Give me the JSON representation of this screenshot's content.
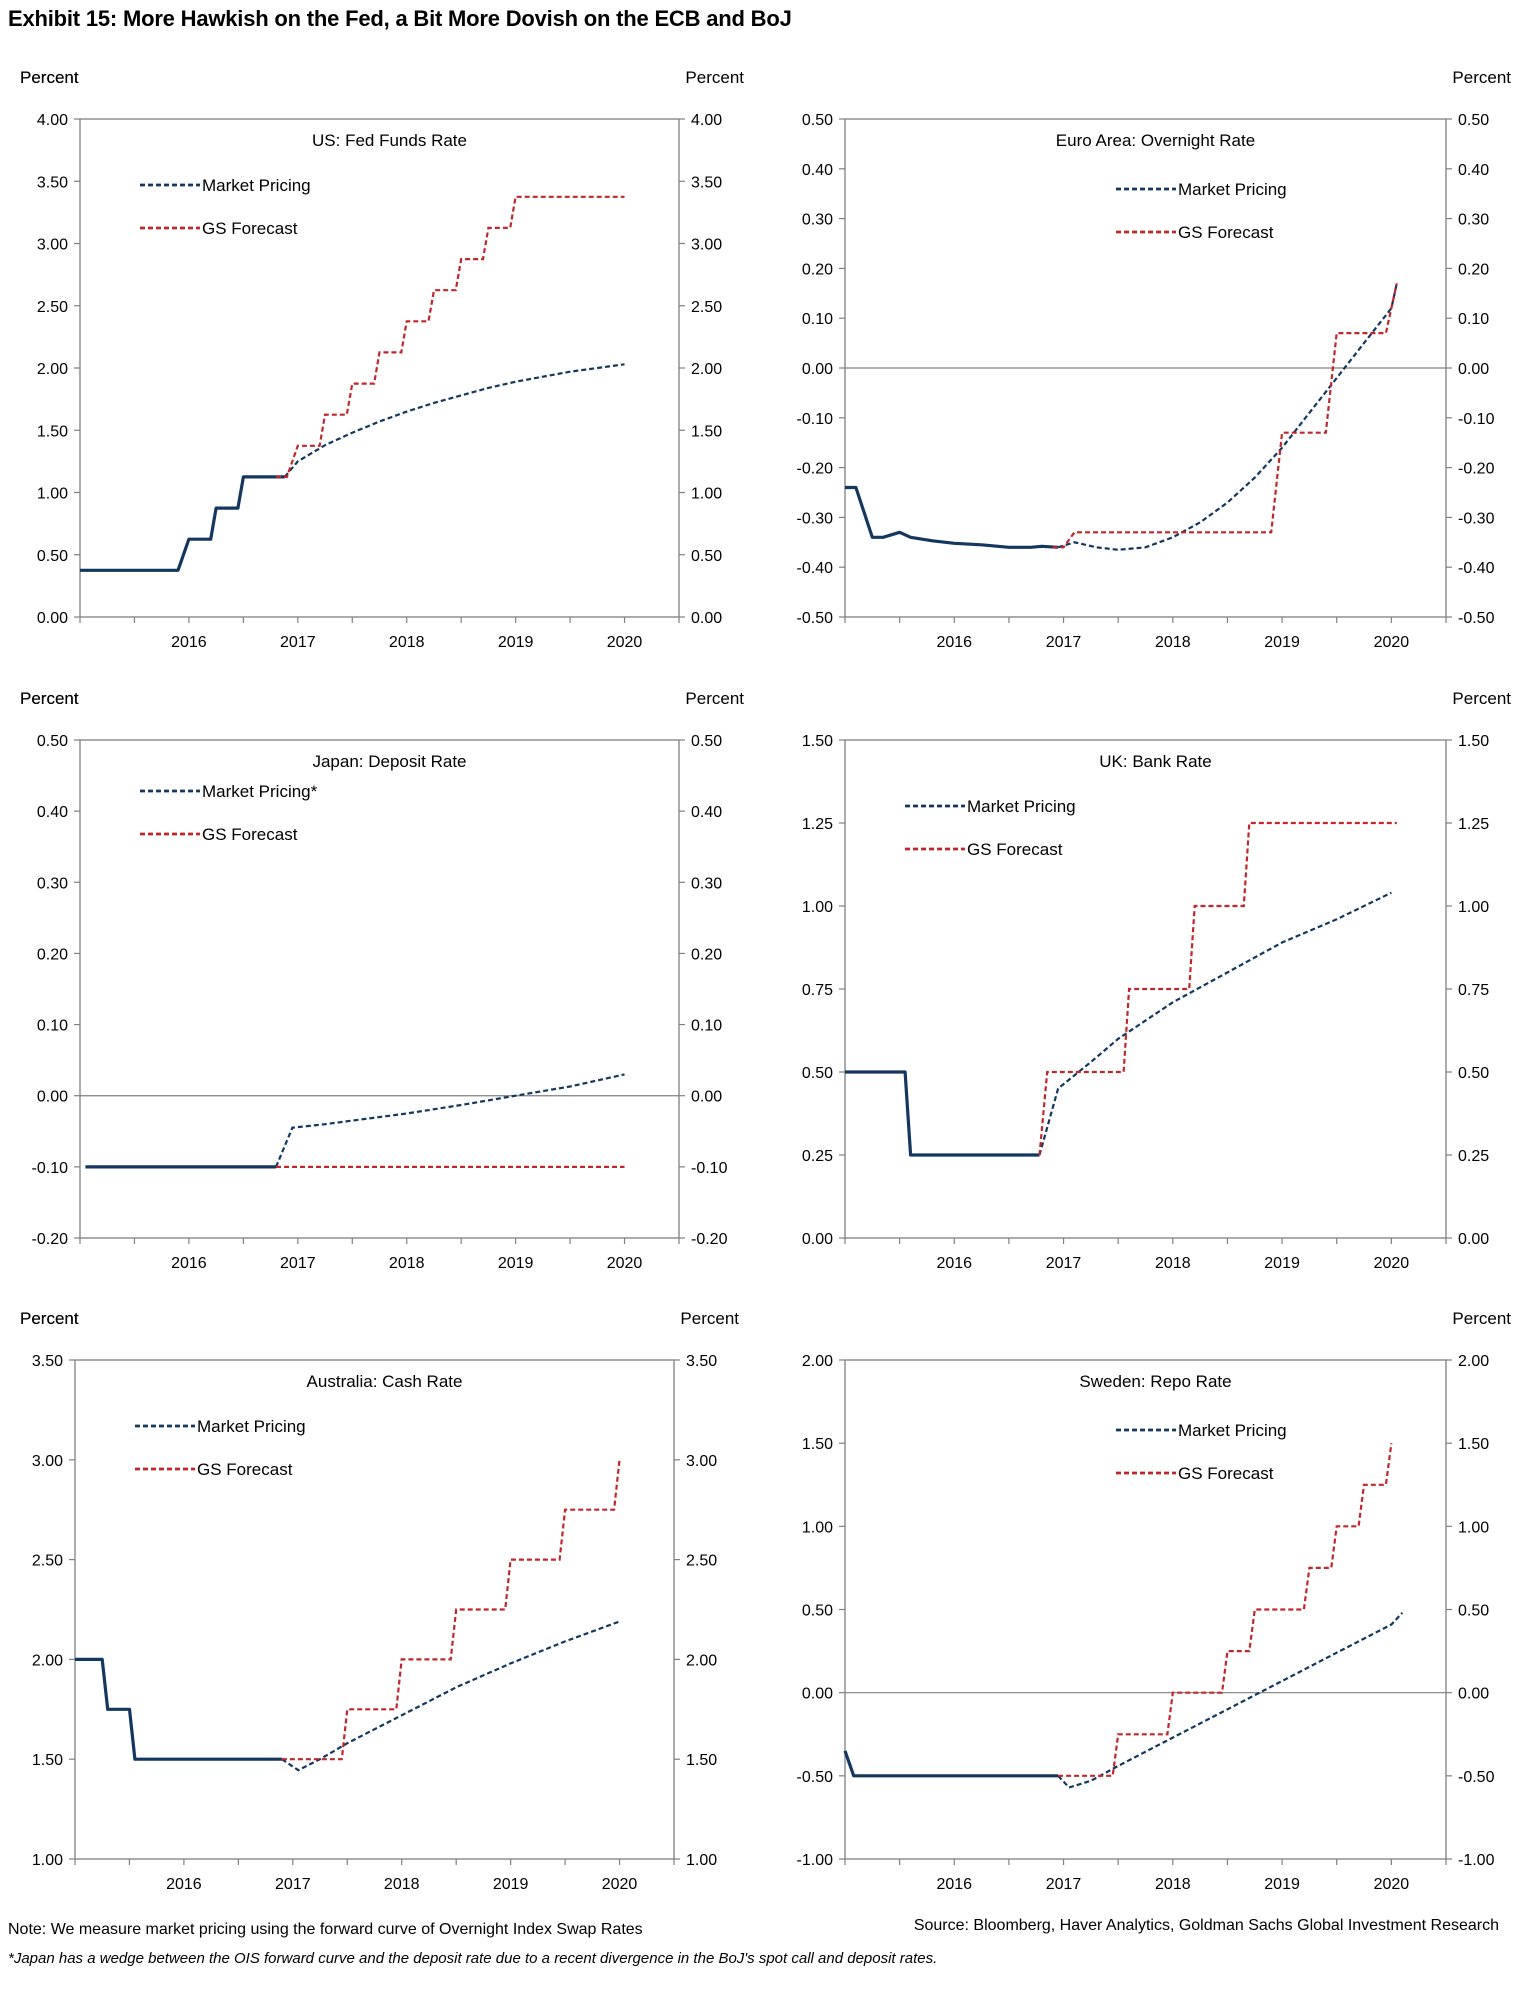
{
  "title": "Exhibit 15: More Hawkish on the Fed, a Bit More Dovish on the ECB and BoJ",
  "note": "Note: We measure market pricing using the forward curve of Overnight Index Swap Rates",
  "source": "Source: Bloomberg, Haver Analytics, Goldman Sachs Global Investment Research",
  "footnote": "*Japan has a wedge between the OIS forward curve and the deposit rate due to a recent divergence in the BoJ's spot call and deposit rates.",
  "colors": {
    "market": "#14375e",
    "forecast": "#c0272d",
    "axis": "#808080"
  },
  "chart_data": [
    {
      "type": "line",
      "title": "US: Fed Funds Rate",
      "ylabel_left": "Percent",
      "ylabel_right": "Percent",
      "ylim": [
        0,
        4
      ],
      "yticks": [
        "0.00",
        "0.50",
        "1.00",
        "1.50",
        "2.00",
        "2.50",
        "3.00",
        "3.50",
        "4.00"
      ],
      "xlim": [
        2015.5,
        2021.0
      ],
      "xticks": [
        "2016",
        "2017",
        "2018",
        "2019",
        "2020"
      ],
      "zero_line": false,
      "legend": [
        "Market Pricing",
        "GS Forecast"
      ],
      "legend_position": "top-left",
      "history": [
        [
          2015.5,
          0.375
        ],
        [
          2016.4,
          0.375
        ],
        [
          2016.5,
          0.625
        ],
        [
          2016.7,
          0.625
        ],
        [
          2016.75,
          0.875
        ],
        [
          2016.95,
          0.875
        ],
        [
          2017.0,
          1.125
        ],
        [
          2017.38,
          1.125
        ]
      ],
      "series": [
        {
          "name": "Market Pricing",
          "points": [
            [
              2017.38,
              1.125
            ],
            [
              2017.5,
              1.25
            ],
            [
              2017.75,
              1.38
            ],
            [
              2018.0,
              1.48
            ],
            [
              2018.25,
              1.57
            ],
            [
              2018.5,
              1.65
            ],
            [
              2018.75,
              1.72
            ],
            [
              2019.0,
              1.78
            ],
            [
              2019.25,
              1.84
            ],
            [
              2019.5,
              1.89
            ],
            [
              2019.75,
              1.93
            ],
            [
              2020.0,
              1.97
            ],
            [
              2020.25,
              2.0
            ],
            [
              2020.5,
              2.03
            ]
          ]
        },
        {
          "name": "GS Forecast",
          "points": [
            [
              2017.3,
              1.125
            ],
            [
              2017.4,
              1.125
            ],
            [
              2017.5,
              1.375
            ],
            [
              2017.7,
              1.375
            ],
            [
              2017.75,
              1.625
            ],
            [
              2017.95,
              1.625
            ],
            [
              2018.0,
              1.875
            ],
            [
              2018.2,
              1.875
            ],
            [
              2018.25,
              2.125
            ],
            [
              2018.45,
              2.125
            ],
            [
              2018.5,
              2.375
            ],
            [
              2018.7,
              2.375
            ],
            [
              2018.75,
              2.625
            ],
            [
              2018.95,
              2.625
            ],
            [
              2019.0,
              2.875
            ],
            [
              2019.2,
              2.875
            ],
            [
              2019.25,
              3.125
            ],
            [
              2019.45,
              3.125
            ],
            [
              2019.5,
              3.375
            ],
            [
              2020.5,
              3.375
            ]
          ]
        }
      ]
    },
    {
      "type": "line",
      "title": "Euro Area: Overnight Rate",
      "ylabel_left": "Percent",
      "ylabel_right": "Percent",
      "ylim": [
        -0.5,
        0.5
      ],
      "yticks": [
        "-0.50",
        "-0.40",
        "-0.30",
        "-0.20",
        "-0.10",
        "0.00",
        "0.10",
        "0.20",
        "0.30",
        "0.40",
        "0.50"
      ],
      "xlim": [
        2015.5,
        2021.0
      ],
      "xticks": [
        "2016",
        "2017",
        "2018",
        "2019",
        "2020"
      ],
      "zero_line": true,
      "legend": [
        "Market Pricing",
        "GS Forecast"
      ],
      "legend_position": "top-right",
      "history": [
        [
          2015.5,
          -0.24
        ],
        [
          2015.6,
          -0.24
        ],
        [
          2015.75,
          -0.34
        ],
        [
          2015.85,
          -0.34
        ],
        [
          2016.0,
          -0.33
        ],
        [
          2016.1,
          -0.34
        ],
        [
          2016.3,
          -0.347
        ],
        [
          2016.5,
          -0.352
        ],
        [
          2016.75,
          -0.355
        ],
        [
          2017.0,
          -0.36
        ],
        [
          2017.2,
          -0.36
        ],
        [
          2017.3,
          -0.358
        ],
        [
          2017.45,
          -0.36
        ]
      ],
      "series": [
        {
          "name": "Market Pricing",
          "points": [
            [
              2017.45,
              -0.36
            ],
            [
              2017.6,
              -0.35
            ],
            [
              2017.8,
              -0.36
            ],
            [
              2018.0,
              -0.365
            ],
            [
              2018.25,
              -0.36
            ],
            [
              2018.5,
              -0.34
            ],
            [
              2018.75,
              -0.31
            ],
            [
              2019.0,
              -0.27
            ],
            [
              2019.25,
              -0.22
            ],
            [
              2019.5,
              -0.16
            ],
            [
              2019.75,
              -0.09
            ],
            [
              2020.0,
              -0.02
            ],
            [
              2020.25,
              0.05
            ],
            [
              2020.5,
              0.12
            ],
            [
              2020.55,
              0.17
            ]
          ]
        },
        {
          "name": "GS Forecast",
          "points": [
            [
              2017.4,
              -0.36
            ],
            [
              2017.5,
              -0.36
            ],
            [
              2017.6,
              -0.33
            ],
            [
              2019.4,
              -0.33
            ],
            [
              2019.5,
              -0.13
            ],
            [
              2019.9,
              -0.13
            ],
            [
              2020.0,
              0.07
            ],
            [
              2020.45,
              0.07
            ],
            [
              2020.55,
              0.17
            ]
          ]
        }
      ]
    },
    {
      "type": "line",
      "title": "Japan: Deposit Rate",
      "ylabel_left": "Percent",
      "ylabel_right": "Percent",
      "ylim": [
        -0.2,
        0.5
      ],
      "yticks": [
        "-0.20",
        "-0.10",
        "0.00",
        "0.10",
        "0.20",
        "0.30",
        "0.40",
        "0.50"
      ],
      "xlim": [
        2015.5,
        2021.0
      ],
      "xticks": [
        "2016",
        "2017",
        "2018",
        "2019",
        "2020"
      ],
      "zero_line": true,
      "legend": [
        "Market Pricing*",
        "GS Forecast"
      ],
      "legend_position": "top-left",
      "history": [
        [
          2015.55,
          -0.1
        ],
        [
          2017.3,
          -0.1
        ]
      ],
      "series": [
        {
          "name": "Market Pricing*",
          "points": [
            [
              2017.3,
              -0.1
            ],
            [
              2017.45,
              -0.045
            ],
            [
              2017.75,
              -0.04
            ],
            [
              2018.0,
              -0.035
            ],
            [
              2018.5,
              -0.025
            ],
            [
              2019.0,
              -0.013
            ],
            [
              2019.5,
              0.0
            ],
            [
              2020.0,
              0.013
            ],
            [
              2020.5,
              0.03
            ]
          ]
        },
        {
          "name": "GS Forecast",
          "points": [
            [
              2017.3,
              -0.1
            ],
            [
              2020.5,
              -0.1
            ]
          ]
        }
      ]
    },
    {
      "type": "line",
      "title": "UK: Bank Rate",
      "ylabel_left": "Percent",
      "ylabel_right": "Percent",
      "ylim": [
        0,
        1.5
      ],
      "yticks": [
        "0.00",
        "0.25",
        "0.50",
        "0.75",
        "1.00",
        "1.25",
        "1.50"
      ],
      "xlim": [
        2015.5,
        2021.0
      ],
      "xticks": [
        "2016",
        "2017",
        "2018",
        "2019",
        "2020"
      ],
      "zero_line": false,
      "legend": [
        "Market Pricing",
        "GS Forecast"
      ],
      "legend_position": "top-left",
      "history": [
        [
          2015.5,
          0.5
        ],
        [
          2016.05,
          0.5
        ],
        [
          2016.1,
          0.25
        ],
        [
          2017.28,
          0.25
        ]
      ],
      "series": [
        {
          "name": "Market Pricing",
          "points": [
            [
              2017.28,
              0.25
            ],
            [
              2017.45,
              0.45
            ],
            [
              2017.75,
              0.53
            ],
            [
              2018.0,
              0.6
            ],
            [
              2018.5,
              0.71
            ],
            [
              2019.0,
              0.8
            ],
            [
              2019.5,
              0.89
            ],
            [
              2020.0,
              0.96
            ],
            [
              2020.5,
              1.04
            ]
          ]
        },
        {
          "name": "GS Forecast",
          "points": [
            [
              2017.28,
              0.25
            ],
            [
              2017.35,
              0.5
            ],
            [
              2018.05,
              0.5
            ],
            [
              2018.1,
              0.75
            ],
            [
              2018.65,
              0.75
            ],
            [
              2018.7,
              1.0
            ],
            [
              2019.15,
              1.0
            ],
            [
              2019.2,
              1.25
            ],
            [
              2020.55,
              1.25
            ]
          ]
        }
      ]
    },
    {
      "type": "line",
      "title": "Australia: Cash Rate",
      "ylabel_left": "Percent",
      "ylabel_right": "Percent",
      "ylim": [
        1.0,
        3.5
      ],
      "yticks": [
        "1.00",
        "1.50",
        "2.00",
        "2.50",
        "3.00",
        "3.50"
      ],
      "xlim": [
        2015.5,
        2021.0
      ],
      "xticks": [
        "2016",
        "2017",
        "2018",
        "2019",
        "2020"
      ],
      "zero_line": false,
      "legend": [
        "Market Pricing",
        "GS Forecast"
      ],
      "legend_position": "top-left",
      "history": [
        [
          2015.5,
          2.0
        ],
        [
          2015.75,
          2.0
        ],
        [
          2015.8,
          1.75
        ],
        [
          2016.0,
          1.75
        ],
        [
          2016.05,
          1.5
        ],
        [
          2017.4,
          1.5
        ]
      ],
      "series": [
        {
          "name": "Market Pricing",
          "points": [
            [
              2017.4,
              1.5
            ],
            [
              2017.55,
              1.445
            ],
            [
              2017.75,
              1.5
            ],
            [
              2018.0,
              1.58
            ],
            [
              2018.5,
              1.72
            ],
            [
              2019.0,
              1.86
            ],
            [
              2019.5,
              1.98
            ],
            [
              2020.0,
              2.09
            ],
            [
              2020.5,
              2.19
            ]
          ]
        },
        {
          "name": "GS Forecast",
          "points": [
            [
              2017.4,
              1.5
            ],
            [
              2017.95,
              1.5
            ],
            [
              2018.0,
              1.75
            ],
            [
              2018.45,
              1.75
            ],
            [
              2018.5,
              2.0
            ],
            [
              2018.95,
              2.0
            ],
            [
              2019.0,
              2.25
            ],
            [
              2019.45,
              2.25
            ],
            [
              2019.5,
              2.5
            ],
            [
              2019.95,
              2.5
            ],
            [
              2020.0,
              2.75
            ],
            [
              2020.45,
              2.75
            ],
            [
              2020.5,
              3.0
            ]
          ]
        }
      ]
    },
    {
      "type": "line",
      "title": "Sweden: Repo Rate",
      "ylabel_left": "Percent",
      "ylabel_right": "Percent",
      "ylim": [
        -1.0,
        2.0
      ],
      "yticks": [
        "-1.00",
        "-0.50",
        "0.00",
        "0.50",
        "1.00",
        "1.50",
        "2.00"
      ],
      "xlim": [
        2015.5,
        2021.0
      ],
      "xticks": [
        "2016",
        "2017",
        "2018",
        "2019",
        "2020"
      ],
      "zero_line": true,
      "legend": [
        "Market Pricing",
        "GS Forecast"
      ],
      "legend_position": "top-right",
      "history": [
        [
          2015.5,
          -0.35
        ],
        [
          2015.58,
          -0.5
        ],
        [
          2017.45,
          -0.5
        ]
      ],
      "series": [
        {
          "name": "Market Pricing",
          "points": [
            [
              2017.45,
              -0.5
            ],
            [
              2017.55,
              -0.57
            ],
            [
              2017.75,
              -0.53
            ],
            [
              2018.0,
              -0.44
            ],
            [
              2018.5,
              -0.27
            ],
            [
              2019.0,
              -0.1
            ],
            [
              2019.5,
              0.07
            ],
            [
              2020.0,
              0.24
            ],
            [
              2020.5,
              0.41
            ],
            [
              2020.6,
              0.48
            ]
          ]
        },
        {
          "name": "GS Forecast",
          "points": [
            [
              2017.45,
              -0.5
            ],
            [
              2017.95,
              -0.5
            ],
            [
              2018.0,
              -0.25
            ],
            [
              2018.45,
              -0.25
            ],
            [
              2018.5,
              0.0
            ],
            [
              2018.95,
              0.0
            ],
            [
              2019.0,
              0.25
            ],
            [
              2019.2,
              0.25
            ],
            [
              2019.25,
              0.5
            ],
            [
              2019.7,
              0.5
            ],
            [
              2019.75,
              0.75
            ],
            [
              2019.95,
              0.75
            ],
            [
              2020.0,
              1.0
            ],
            [
              2020.2,
              1.0
            ],
            [
              2020.25,
              1.25
            ],
            [
              2020.45,
              1.25
            ],
            [
              2020.5,
              1.5
            ]
          ]
        }
      ]
    }
  ]
}
